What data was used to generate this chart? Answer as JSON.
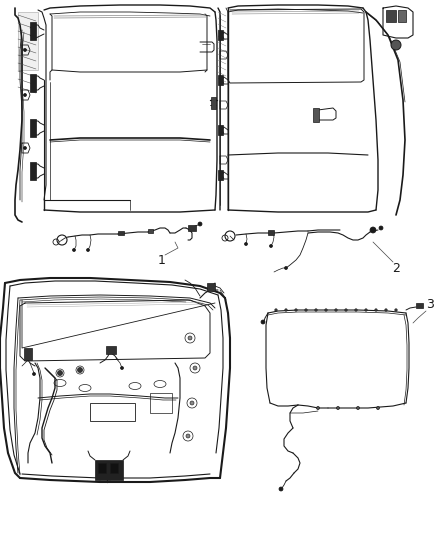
{
  "bg": "#ffffff",
  "lc": "#1a1a1a",
  "lc2": "#333333",
  "lc3": "#666666",
  "fig_w": 4.38,
  "fig_h": 5.33,
  "dpi": 100,
  "label_1": "1",
  "label_2": "2",
  "label_3": "3",
  "label_fs": 9
}
